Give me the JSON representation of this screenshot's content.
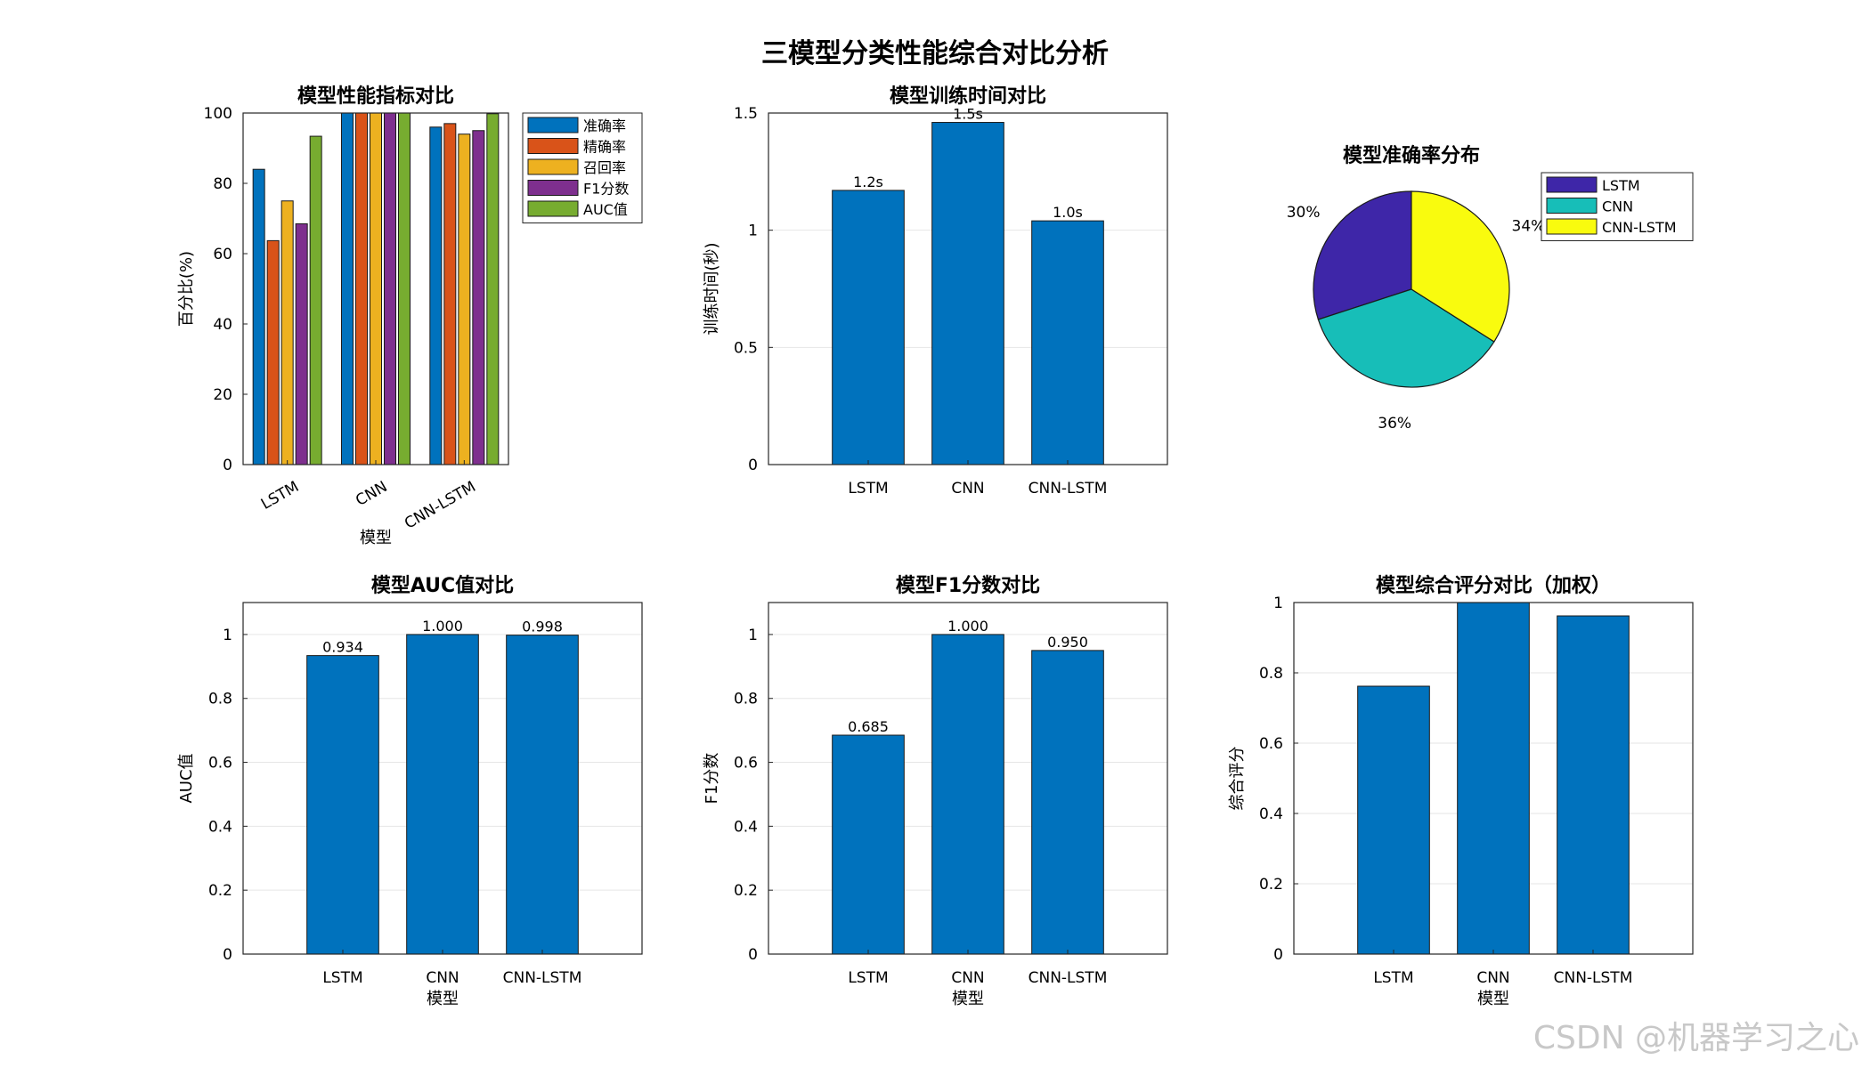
{
  "figure": {
    "title": "三模型分类性能综合对比分析",
    "watermark": "CSDN @机器学习之心"
  },
  "colors": {
    "bar_blue": "#0072BD",
    "metric_colors": [
      "#0072BD",
      "#D95319",
      "#EDB120",
      "#7E2F8E",
      "#77AC30"
    ],
    "pie_colors": [
      "#3E26A8",
      "#17BEB8",
      "#F9FB0E"
    ],
    "grid": "#e6e6e6"
  },
  "chart_data": [
    {
      "id": "metrics",
      "type": "bar",
      "title": "模型性能指标对比",
      "xlabel": "模型",
      "ylabel": "百分比(%)",
      "categories": [
        "LSTM",
        "CNN",
        "CNN-LSTM"
      ],
      "ylim": [
        0,
        100
      ],
      "yticks": [
        0,
        20,
        40,
        60,
        80,
        100
      ],
      "grid": false,
      "legend": "outside-right-top",
      "series": [
        {
          "name": "准确率",
          "values": [
            84,
            100,
            96
          ]
        },
        {
          "name": "精确率",
          "values": [
            63.7,
            100,
            97
          ]
        },
        {
          "name": "召回率",
          "values": [
            75,
            100,
            94
          ]
        },
        {
          "name": "F1分数",
          "values": [
            68.5,
            100,
            95
          ]
        },
        {
          "name": "AUC值",
          "values": [
            93.4,
            100,
            99.8
          ]
        }
      ]
    },
    {
      "id": "time",
      "type": "bar",
      "title": "模型训练时间对比",
      "xlabel": "",
      "ylabel": "训练时间(秒)",
      "categories": [
        "LSTM",
        "CNN",
        "CNN-LSTM"
      ],
      "values": [
        1.17,
        1.46,
        1.04
      ],
      "value_labels": [
        "1.2s",
        "1.5s",
        "1.0s"
      ],
      "ylim": [
        0,
        1.5
      ],
      "yticks": [
        0,
        0.5,
        1,
        1.5
      ],
      "ytick_labels": [
        "0",
        "0.5",
        "1",
        "1.5"
      ],
      "grid": true
    },
    {
      "id": "pie",
      "type": "pie",
      "title": "模型准确率分布",
      "labels": [
        "LSTM",
        "CNN",
        "CNN-LSTM"
      ],
      "values": [
        30,
        36,
        34
      ],
      "value_labels": [
        "30%",
        "36%",
        "34%"
      ],
      "legend": "outside-right-top"
    },
    {
      "id": "auc",
      "type": "bar",
      "title": "模型AUC值对比",
      "xlabel": "模型",
      "ylabel": "AUC值",
      "categories": [
        "LSTM",
        "CNN",
        "CNN-LSTM"
      ],
      "values": [
        0.934,
        1.0,
        0.998
      ],
      "value_labels": [
        "0.934",
        "1.000",
        "0.998"
      ],
      "ylim": [
        0,
        1.1
      ],
      "yticks": [
        0,
        0.2,
        0.4,
        0.6,
        0.8,
        1
      ],
      "ytick_labels": [
        "0",
        "0.2",
        "0.4",
        "0.6",
        "0.8",
        "1"
      ],
      "grid": true
    },
    {
      "id": "f1",
      "type": "bar",
      "title": "模型F1分数对比",
      "xlabel": "模型",
      "ylabel": "F1分数",
      "categories": [
        "LSTM",
        "CNN",
        "CNN-LSTM"
      ],
      "values": [
        0.685,
        1.0,
        0.95
      ],
      "value_labels": [
        "0.685",
        "1.000",
        "0.950"
      ],
      "ylim": [
        0,
        1.1
      ],
      "yticks": [
        0,
        0.2,
        0.4,
        0.6,
        0.8,
        1
      ],
      "ytick_labels": [
        "0",
        "0.2",
        "0.4",
        "0.6",
        "0.8",
        "1"
      ],
      "grid": true
    },
    {
      "id": "score",
      "type": "bar",
      "title": "模型综合评分对比（加权）",
      "xlabel": "模型",
      "ylabel": "综合评分",
      "categories": [
        "LSTM",
        "CNN",
        "CNN-LSTM"
      ],
      "values": [
        0.762,
        1.0,
        0.962
      ],
      "ylim": [
        0,
        1
      ],
      "yticks": [
        0,
        0.2,
        0.4,
        0.6,
        0.8,
        1
      ],
      "ytick_labels": [
        "0",
        "0.2",
        "0.4",
        "0.6",
        "0.8",
        "1"
      ],
      "grid": true
    }
  ]
}
